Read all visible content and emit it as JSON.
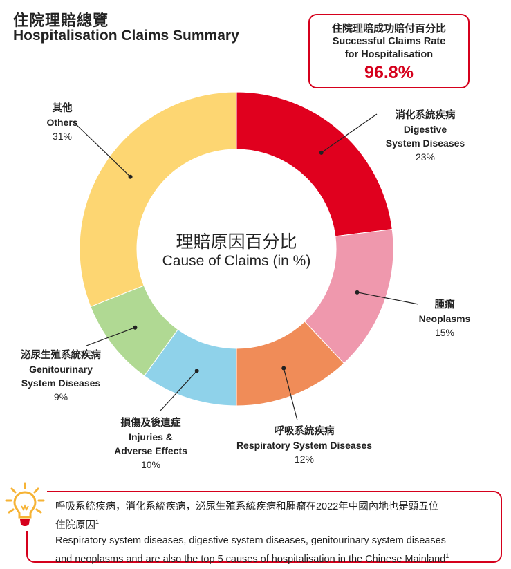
{
  "header": {
    "title_zh": "住院理賠總覽",
    "title_en": "Hospitalisation Claims Summary"
  },
  "rate_box": {
    "label_zh": "住院理賠成功賠付百分比",
    "label_en_line1": "Successful Claims Rate",
    "label_en_line2": "for Hospitalisation",
    "value": "96.8%"
  },
  "chart_data": {
    "type": "pie",
    "donut": true,
    "center_label_zh": "理賠原因百分比",
    "center_label_en": "Cause of Claims (in %)",
    "slices": [
      {
        "label_zh": "消化系統疾病",
        "label_en": "Digestive System Diseases",
        "value": 23,
        "pct_label": "23%",
        "color": "#e0001e"
      },
      {
        "label_zh": "腫瘤",
        "label_en": "Neoplasms",
        "value": 15,
        "pct_label": "15%",
        "color": "#ef98ad"
      },
      {
        "label_zh": "呼吸系統疾病",
        "label_en": "Respiratory System Diseases",
        "value": 12,
        "pct_label": "12%",
        "color": "#f08c58"
      },
      {
        "label_zh": "損傷及後遺症",
        "label_en": "Injuries & Adverse Effects",
        "value": 10,
        "pct_label": "10%",
        "color": "#8fd2ea"
      },
      {
        "label_zh": "泌尿生殖系統疾病",
        "label_en": "Genitourinary System Diseases",
        "value": 9,
        "pct_label": "9%",
        "color": "#b0d993"
      },
      {
        "label_zh": "其他",
        "label_en": "Others",
        "value": 31,
        "pct_label": "31%",
        "color": "#fdd672"
      }
    ]
  },
  "labels": {
    "digestive": {
      "zh": "消化系統疾病",
      "en1": "Digestive",
      "en2": "System Diseases",
      "pct": "23%"
    },
    "neoplasms": {
      "zh": "腫瘤",
      "en1": "Neoplasms",
      "pct": "15%"
    },
    "respiratory": {
      "zh": "呼吸系統疾病",
      "en1": "Respiratory System Diseases",
      "pct": "12%"
    },
    "injuries": {
      "zh": "損傷及後遺症",
      "en1": "Injuries &",
      "en2": "Adverse Effects",
      "pct": "10%"
    },
    "genitourinary": {
      "zh": "泌尿生殖系統疾病",
      "en1": "Genitourinary",
      "en2": "System Diseases",
      "pct": "9%"
    },
    "others": {
      "zh": "其他",
      "en1": "Others",
      "pct": "31%"
    }
  },
  "note": {
    "line_zh_1": "呼吸系統疾病，消化系統疾病，泌尿生殖系統疾病和腫瘤在2022年中國內地也是頭五位",
    "line_zh_2": "住院原因",
    "line_en_1": "Respiratory system diseases, digestive system diseases, genitourinary system diseases",
    "line_en_2": "and neoplasms and are also the top 5 causes of hospitalisation in the Chinese Mainland",
    "footnote_mark": "1"
  },
  "colors": {
    "accent": "#d5001c",
    "bulb": "#f6b335"
  }
}
